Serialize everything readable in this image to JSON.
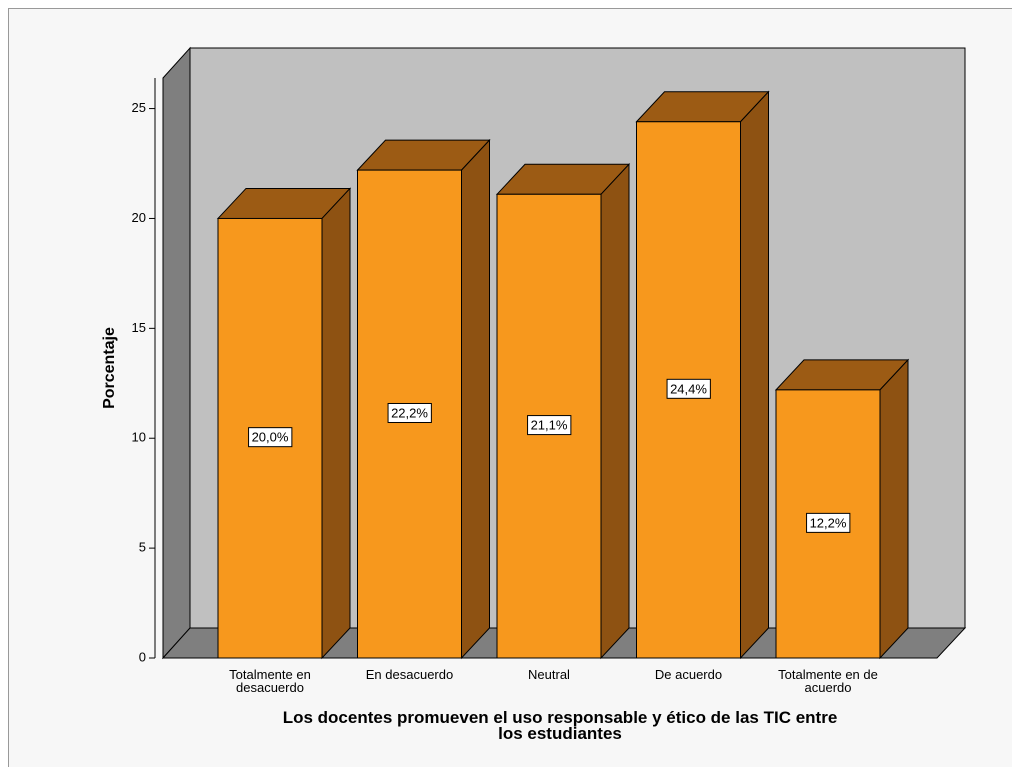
{
  "chart_data": {
    "type": "bar3d",
    "x_label": "Los docentes promueven el uso responsable y ético de las TIC entre los estudiantes",
    "y_label": "Porcentaje",
    "categories": [
      "Totalmente en desacuerdo",
      "En desacuerdo",
      "Neutral",
      "De acuerdo",
      "Totalmente en de acuerdo"
    ],
    "values": [
      20.0,
      22.2,
      21.1,
      24.4,
      12.2
    ],
    "value_labels": [
      "20,0%",
      "22,2%",
      "21,1%",
      "24,4%",
      "12,2%"
    ],
    "color": "#f7981d",
    "ylim": [
      0,
      26.3
    ],
    "yticks": [
      0,
      5,
      10,
      15,
      20,
      25
    ]
  }
}
